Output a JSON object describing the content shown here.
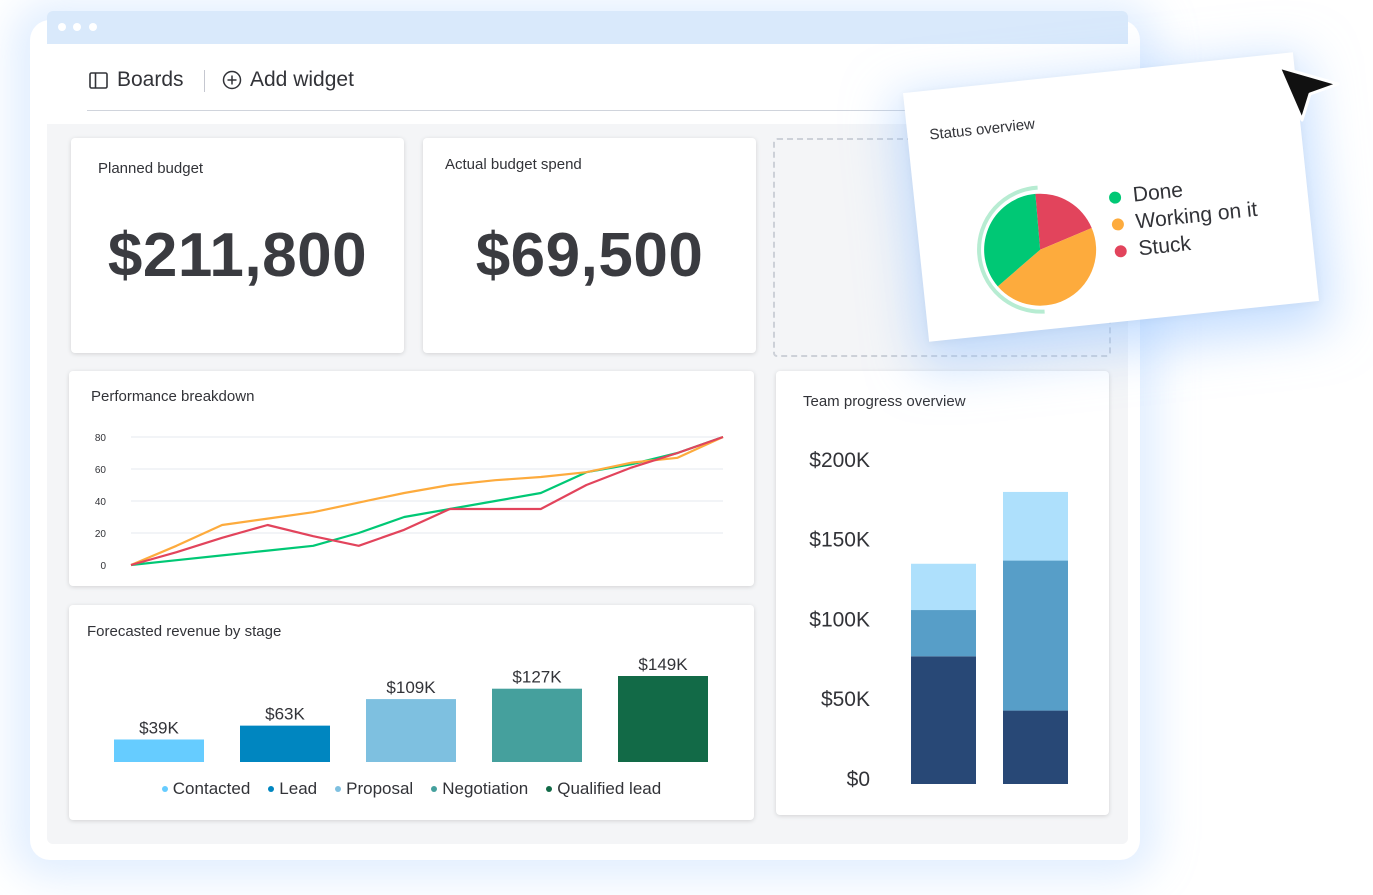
{
  "toolbar": {
    "boards_label": "Boards",
    "add_widget_label": "Add widget"
  },
  "widgets": {
    "planned_budget": {
      "title": "Planned budget",
      "value": "$211,800"
    },
    "actual_budget": {
      "title": "Actual budget spend",
      "value": "$69,500"
    }
  },
  "status_overview": {
    "title": "Status overview",
    "legend": [
      {
        "label": "Done",
        "color": "#00c875"
      },
      {
        "label": "Working on it",
        "color": "#fdab3d"
      },
      {
        "label": "Stuck",
        "color": "#e2445c"
      }
    ]
  },
  "performance": {
    "title": "Performance breakdown"
  },
  "forecast": {
    "title": "Forecasted revenue by stage"
  },
  "team_progress": {
    "title": "Team progress overview"
  },
  "cursor_icon": "cursor-arrow-icon",
  "chart_data": [
    {
      "id": "status",
      "type": "pie",
      "title": "Status overview",
      "labels": [
        "Done",
        "Working on it",
        "Stuck"
      ],
      "values": [
        35,
        45,
        20
      ],
      "colors": [
        "#00c875",
        "#fdab3d",
        "#e2445c"
      ],
      "legend": "right"
    },
    {
      "id": "performance",
      "type": "line",
      "title": "Performance breakdown",
      "x": [
        0,
        1,
        2,
        3,
        4,
        5,
        6,
        7,
        8,
        9,
        10,
        11,
        12,
        13
      ],
      "ylim": [
        0,
        80
      ],
      "yticks": [
        0,
        20,
        40,
        60,
        80
      ],
      "grid": true,
      "series": [
        {
          "color": "#00c875",
          "values": [
            0,
            3,
            6,
            9,
            12,
            20,
            30,
            35,
            40,
            45,
            58,
            63,
            70,
            80
          ]
        },
        {
          "color": "#fdab3d",
          "values": [
            0,
            12,
            25,
            29,
            33,
            39,
            45,
            50,
            53,
            55,
            58,
            64,
            67,
            80
          ]
        },
        {
          "color": "#e2445c",
          "values": [
            0,
            8,
            17,
            25,
            18,
            12,
            22,
            35,
            35,
            35,
            50,
            61,
            70,
            80
          ]
        }
      ]
    },
    {
      "id": "forecast",
      "type": "bar",
      "title": "Forecasted revenue by stage",
      "categories": [
        "Contacted",
        "Lead",
        "Proposal",
        "Negotiation",
        "Qualified lead"
      ],
      "values": [
        39,
        63,
        109,
        127,
        149
      ],
      "labels": [
        "$39K",
        "$63K",
        "$109K",
        "$127K",
        "$149K"
      ],
      "colors": [
        "#66ccff",
        "#0086c0",
        "#7ec0e0",
        "#45a09d",
        "#126a47"
      ],
      "ylim": [
        0,
        149
      ],
      "legend": "bottom"
    },
    {
      "id": "team",
      "type": "bar",
      "stacked": true,
      "title": "Team progress overview",
      "yticks": [
        "$200K",
        "$150K",
        "$100K",
        "$50K",
        "$0"
      ],
      "ylim": [
        0,
        200
      ],
      "categories": [
        "",
        ""
      ],
      "series": [
        {
          "color": "#284876",
          "values": [
            80,
            46
          ]
        },
        {
          "color": "#579ec8",
          "values": [
            29,
            94
          ]
        },
        {
          "color": "#aee0fc",
          "values": [
            29,
            43
          ]
        }
      ]
    }
  ]
}
